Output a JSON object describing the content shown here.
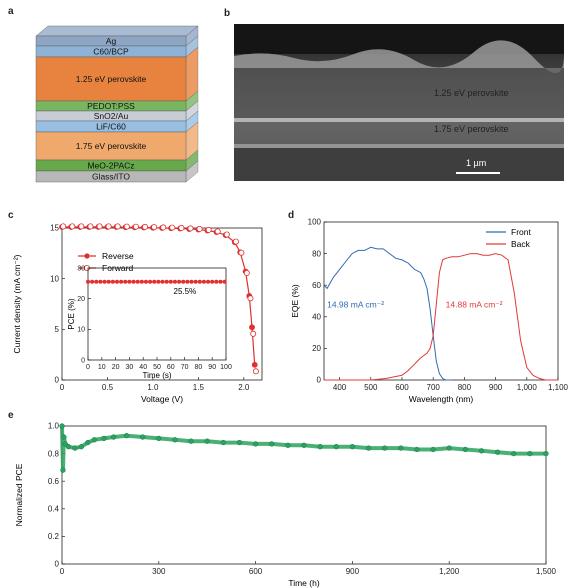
{
  "panels": {
    "a": "a",
    "b": "b",
    "c": "c",
    "d": "d",
    "e": "e"
  },
  "colors": {
    "ag": "#8ea6c3",
    "c60bcp": "#8fb3d6",
    "pero125": "#e8833f",
    "green": "#6fae4e",
    "pedot": "#79b660",
    "sno": "#c8ccd6",
    "lif": "#98bfe2",
    "pero175": "#f0a96d",
    "meo": "#66a84a",
    "glass": "#b8b8b8",
    "reverse": "#e03030",
    "forward": "#e03030",
    "front": "#2f6ab0",
    "back": "#e03a3a",
    "stability": "#2ca25f",
    "sem_label": "#e8b94a"
  },
  "stack": {
    "layers": [
      "Ag",
      "C60/BCP",
      "1.25 eV perovskite",
      "PEDOT:PSS",
      "SnO2/Au",
      "LiF/C60",
      "1.75 eV perovskite",
      "MeO-2PACz",
      "Glass/ITO"
    ]
  },
  "sem": {
    "label_top": "1.25 eV  perovskite",
    "label_bottom": "1.75 eV  perovskite",
    "scale": "1 µm"
  },
  "chart_data": [
    {
      "type": "line",
      "panel": "c",
      "xlabel": "Voltage (V)",
      "ylabel": "Current density (mA cm⁻²)",
      "xlim": [
        0,
        2.2
      ],
      "ylim": [
        0,
        15
      ],
      "x_ticks": [
        "0",
        "0.5",
        "1.0",
        "1.5",
        "2.0"
      ],
      "y_ticks": [
        "0",
        "5",
        "10",
        "15"
      ],
      "legend": [
        "Reverse",
        "Forward"
      ],
      "series": [
        {
          "name": "Reverse",
          "x": [
            0,
            0.1,
            0.2,
            0.3,
            0.4,
            0.5,
            0.6,
            0.7,
            0.8,
            0.9,
            1.0,
            1.1,
            1.2,
            1.3,
            1.4,
            1.5,
            1.6,
            1.7,
            1.8,
            1.9,
            1.96,
            2.02,
            2.06,
            2.09,
            2.12
          ],
          "y": [
            15.1,
            15.1,
            15.1,
            15.1,
            15.1,
            15.1,
            15.1,
            15.08,
            15.07,
            15.05,
            15.03,
            15.0,
            14.98,
            14.95,
            14.9,
            14.85,
            14.75,
            14.6,
            14.3,
            13.6,
            12.6,
            10.7,
            8.3,
            5.2,
            1.5
          ]
        },
        {
          "name": "Forward",
          "x": [
            0,
            0.1,
            0.2,
            0.3,
            0.4,
            0.5,
            0.6,
            0.7,
            0.8,
            0.9,
            1.0,
            1.1,
            1.2,
            1.3,
            1.4,
            1.5,
            1.6,
            1.7,
            1.8,
            1.9,
            1.96,
            2.02,
            2.06,
            2.09,
            2.12
          ],
          "y": [
            15.1,
            15.1,
            15.1,
            15.1,
            15.1,
            15.1,
            15.1,
            15.08,
            15.07,
            15.05,
            15.03,
            15.0,
            14.98,
            14.95,
            14.9,
            14.85,
            14.75,
            14.6,
            14.3,
            13.6,
            12.5,
            10.5,
            8.0,
            4.5,
            0.8
          ]
        }
      ],
      "inset": {
        "xlabel": "Time (s)",
        "ylabel": "PCE (%)",
        "xlim": [
          0,
          100
        ],
        "ylim": [
          0,
          30
        ],
        "x_ticks": [
          "0",
          "10",
          "20",
          "30",
          "40",
          "50",
          "60",
          "70",
          "80",
          "90",
          "100"
        ],
        "y_ticks": [
          "0",
          "10",
          "20",
          "30"
        ],
        "annotation": "25.5%",
        "value": 25.5
      }
    },
    {
      "type": "line",
      "panel": "d",
      "xlabel": "Wavelength (nm)",
      "ylabel": "EQE (%)",
      "xlim": [
        350,
        1100
      ],
      "ylim": [
        0,
        100
      ],
      "x_ticks": [
        "400",
        "500",
        "600",
        "700",
        "800",
        "900",
        "1,000",
        "1,100"
      ],
      "y_ticks": [
        "0",
        "20",
        "40",
        "60",
        "80",
        "100"
      ],
      "legend": [
        "Front",
        "Back"
      ],
      "annotations": [
        "14.98 mA cm⁻²",
        "14.88 mA cm⁻²"
      ],
      "series": [
        {
          "name": "Front",
          "x": [
            350,
            360,
            380,
            400,
            420,
            440,
            460,
            480,
            500,
            520,
            540,
            560,
            580,
            600,
            620,
            640,
            660,
            670,
            680,
            690,
            700,
            710,
            720,
            730,
            740,
            760
          ],
          "y": [
            60,
            58,
            65,
            70,
            75,
            80,
            82,
            82,
            84,
            83,
            83,
            80,
            77,
            76,
            74,
            70,
            68,
            64,
            58,
            45,
            28,
            12,
            4,
            1,
            0,
            0
          ]
        },
        {
          "name": "Back",
          "x": [
            350,
            400,
            450,
            500,
            550,
            600,
            620,
            640,
            660,
            680,
            690,
            700,
            710,
            720,
            730,
            740,
            760,
            780,
            800,
            820,
            840,
            860,
            880,
            900,
            920,
            940,
            960,
            980,
            1000,
            1020,
            1040,
            1060,
            1100
          ],
          "y": [
            0,
            0,
            0,
            0,
            1,
            3,
            6,
            10,
            14,
            17,
            20,
            28,
            48,
            68,
            76,
            77,
            78,
            78,
            79,
            80,
            80,
            79,
            79,
            80,
            79,
            76,
            55,
            25,
            8,
            3,
            1,
            0,
            0
          ]
        }
      ]
    },
    {
      "type": "scatter",
      "panel": "e",
      "xlabel": "Time (h)",
      "ylabel": "Normalized PCE",
      "xlim": [
        0,
        1500
      ],
      "ylim": [
        0,
        1.0
      ],
      "x_ticks": [
        "0",
        "300",
        "600",
        "900",
        "1,200",
        "1,500"
      ],
      "y_ticks": [
        "0",
        "0.2",
        "0.4",
        "0.6",
        "0.8",
        "1.0"
      ],
      "series": [
        {
          "name": "",
          "x": [
            0,
            3,
            6,
            10,
            20,
            40,
            60,
            80,
            100,
            130,
            160,
            200,
            250,
            300,
            350,
            400,
            450,
            500,
            550,
            600,
            650,
            700,
            750,
            800,
            850,
            900,
            950,
            1000,
            1050,
            1100,
            1150,
            1200,
            1250,
            1300,
            1350,
            1400,
            1450,
            1500
          ],
          "y": [
            1.0,
            0.68,
            0.92,
            0.87,
            0.85,
            0.84,
            0.85,
            0.88,
            0.9,
            0.91,
            0.92,
            0.93,
            0.92,
            0.91,
            0.9,
            0.89,
            0.89,
            0.88,
            0.88,
            0.87,
            0.87,
            0.86,
            0.86,
            0.85,
            0.85,
            0.85,
            0.84,
            0.84,
            0.84,
            0.83,
            0.83,
            0.84,
            0.83,
            0.82,
            0.81,
            0.8,
            0.8,
            0.8
          ]
        }
      ]
    }
  ]
}
